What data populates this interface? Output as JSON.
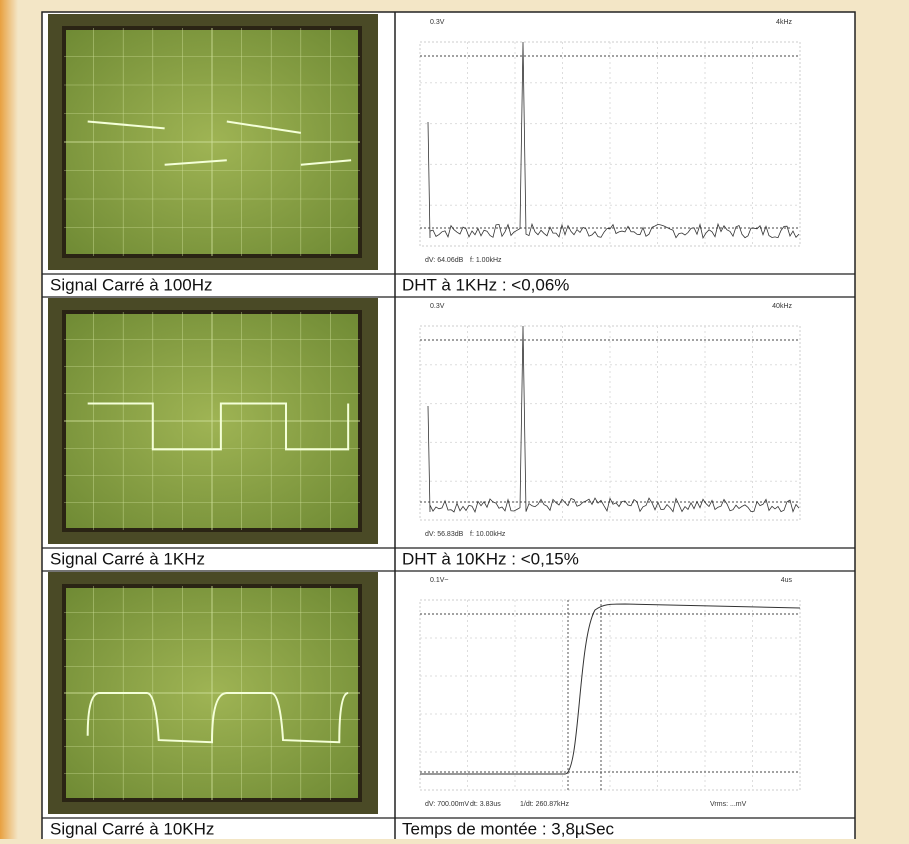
{
  "rows": [
    {
      "scope": {
        "caption": "Signal Carré à 100Hz"
      },
      "analyzer": {
        "caption": "DHT à 1KHz : <0,06%",
        "top_left": "0.3V",
        "top_right": "4kHz",
        "readouts": [
          "dV: 64.06dB",
          "f: 1.00kHz"
        ]
      }
    },
    {
      "scope": {
        "caption": "Signal Carré à 1KHz"
      },
      "analyzer": {
        "caption": "DHT à 10KHz : <0,15%",
        "top_left": "0.3V",
        "top_right": "40kHz",
        "readouts": [
          "dV: 56.83dB",
          "f: 10.00kHz"
        ]
      }
    },
    {
      "scope": {
        "caption": "Signal Carré à 10KHz"
      },
      "analyzer": {
        "caption": "Temps de montée : 3,8µSec",
        "top_left": "0.1V~",
        "top_right": "4us",
        "readouts": [
          "dV: 700.00mV",
          "dt: 3.83us",
          "1/dt: 260.87kHz",
          "Vrms: ...mV"
        ]
      }
    }
  ]
}
